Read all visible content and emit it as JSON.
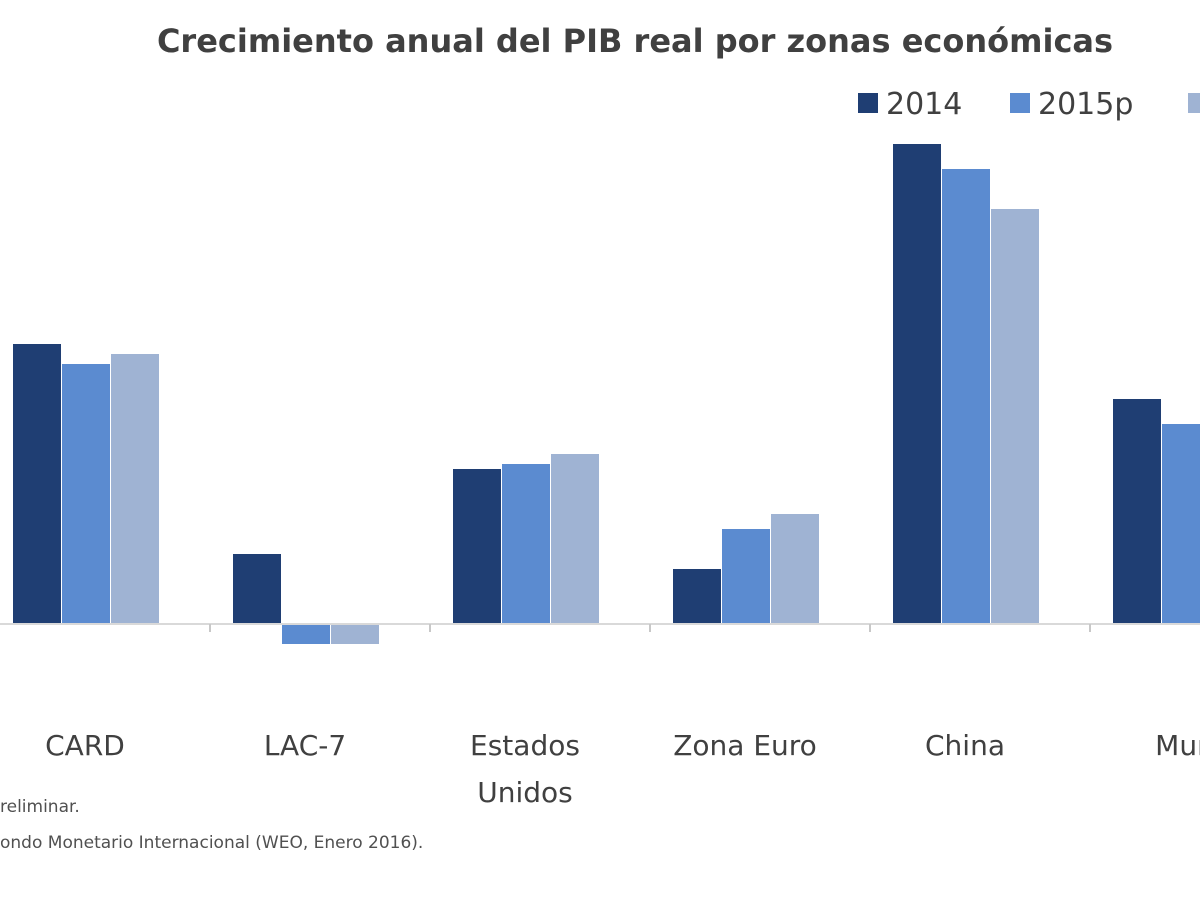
{
  "chart_data": {
    "type": "bar",
    "title": "Crecimiento anual del PIB real por zonas económicas",
    "categories": [
      [
        "CARD"
      ],
      [
        "LAC-7"
      ],
      [
        "Estados",
        "Unidos"
      ],
      [
        "Zona Euro"
      ],
      [
        "China"
      ],
      [
        "Mun"
      ]
    ],
    "series": [
      {
        "name": "2014",
        "color": "#1f3e73",
        "values": [
          5.6,
          1.4,
          3.1,
          1.1,
          9.6,
          4.5
        ]
      },
      {
        "name": "2015p",
        "color": "#5b8bd0",
        "values": [
          5.2,
          -0.4,
          3.2,
          1.9,
          9.1,
          4.0
        ]
      },
      {
        "name": "",
        "color": "#9fb3d3",
        "values": [
          5.4,
          -0.4,
          3.4,
          2.2,
          8.3,
          null
        ]
      }
    ],
    "xlabel": "",
    "ylabel": "",
    "ylim": [
      -1.0,
      10.0
    ],
    "grid": false,
    "legend": "top-right",
    "notes": [
      "reliminar.",
      "ondo Monetario Internacional (WEO, Enero 2016)."
    ]
  }
}
